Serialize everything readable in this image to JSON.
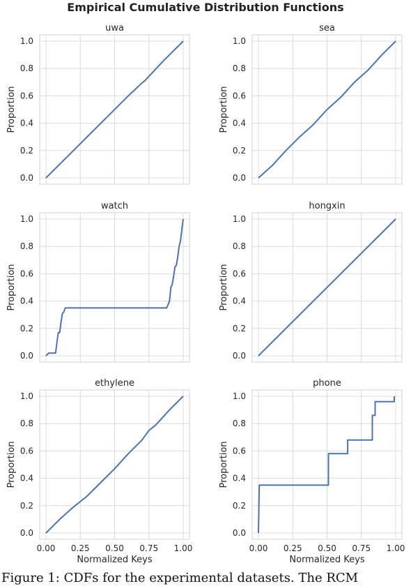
{
  "figure": {
    "title": "Empirical Cumulative Distribution Functions",
    "caption": "Figure 1:  CDFs for the experimental datasets. The RCM"
  },
  "colors": {
    "line": "#4c72b0",
    "grid": "#dcdcdc"
  },
  "chart_data": [
    {
      "type": "line",
      "title": "uwa",
      "xlabel": "",
      "ylabel": "Proportion",
      "xlim": [
        0,
        1
      ],
      "ylim": [
        0,
        1
      ],
      "grid": true,
      "show_x_ticklabels": false,
      "x": [
        0,
        0.2,
        0.4,
        0.6,
        0.7,
        0.72,
        0.85,
        1.0
      ],
      "y": [
        0,
        0.2,
        0.4,
        0.6,
        0.695,
        0.71,
        0.85,
        1.0
      ]
    },
    {
      "type": "line",
      "title": "sea",
      "xlabel": "",
      "ylabel": "Proportion",
      "xlim": [
        0,
        1
      ],
      "ylim": [
        0,
        1
      ],
      "grid": true,
      "show_x_ticklabels": false,
      "x": [
        0,
        0.1,
        0.2,
        0.3,
        0.4,
        0.5,
        0.6,
        0.7,
        0.8,
        0.9,
        1.0
      ],
      "y": [
        0,
        0.09,
        0.2,
        0.3,
        0.39,
        0.5,
        0.59,
        0.7,
        0.79,
        0.9,
        1.0
      ]
    },
    {
      "type": "line",
      "title": "watch",
      "xlabel": "",
      "ylabel": "Proportion",
      "xlim": [
        0,
        1
      ],
      "ylim": [
        0,
        1
      ],
      "grid": true,
      "show_x_ticklabels": false,
      "x": [
        0,
        0.02,
        0.07,
        0.08,
        0.09,
        0.1,
        0.11,
        0.12,
        0.13,
        0.14,
        0.2,
        0.88,
        0.9,
        0.91,
        0.92,
        0.93,
        0.94,
        0.95,
        0.96,
        0.97,
        0.98,
        0.99,
        1.0
      ],
      "y": [
        0,
        0.02,
        0.02,
        0.1,
        0.17,
        0.17,
        0.25,
        0.31,
        0.32,
        0.35,
        0.35,
        0.35,
        0.4,
        0.5,
        0.52,
        0.58,
        0.65,
        0.66,
        0.72,
        0.8,
        0.84,
        0.92,
        1.0
      ]
    },
    {
      "type": "line",
      "title": "hongxin",
      "xlabel": "",
      "ylabel": "Proportion",
      "xlim": [
        0,
        1
      ],
      "ylim": [
        0,
        1
      ],
      "grid": true,
      "show_x_ticklabels": false,
      "x": [
        0,
        1.0
      ],
      "y": [
        0,
        1.0
      ]
    },
    {
      "type": "line",
      "title": "ethylene",
      "xlabel": "Normalized Keys",
      "ylabel": "Proportion",
      "xlim": [
        0,
        1
      ],
      "ylim": [
        0,
        1
      ],
      "grid": true,
      "show_x_ticklabels": true,
      "x": [
        0,
        0.1,
        0.2,
        0.3,
        0.4,
        0.5,
        0.6,
        0.7,
        0.75,
        0.8,
        0.9,
        1.0
      ],
      "y": [
        0,
        0.1,
        0.19,
        0.27,
        0.37,
        0.47,
        0.58,
        0.68,
        0.75,
        0.79,
        0.9,
        1.0
      ]
    },
    {
      "type": "line",
      "title": "phone",
      "xlabel": "Normalized Keys",
      "ylabel": "Proportion",
      "xlim": [
        0,
        1
      ],
      "ylim": [
        0,
        1
      ],
      "grid": true,
      "show_x_ticklabels": true,
      "x": [
        0,
        0.003,
        0.006,
        0.51,
        0.51,
        0.65,
        0.65,
        0.83,
        0.83,
        0.85,
        0.85,
        0.99,
        0.99
      ],
      "y": [
        0,
        0.18,
        0.35,
        0.35,
        0.58,
        0.58,
        0.68,
        0.68,
        0.86,
        0.86,
        0.96,
        0.96,
        1.0
      ]
    }
  ],
  "axes": {
    "y_ticks": [
      "0.0",
      "0.2",
      "0.4",
      "0.6",
      "0.8",
      "1.0"
    ],
    "x_ticks": [
      "0.00",
      "0.25",
      "0.50",
      "0.75",
      "1.00"
    ]
  }
}
